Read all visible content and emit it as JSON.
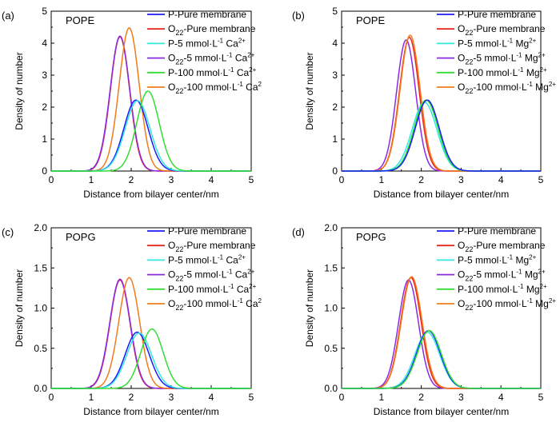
{
  "colors": {
    "p_pure": "#1a1aff",
    "o_pure": "#e8251f",
    "p_5": "#33e8e0",
    "o_5": "#8a2be2",
    "p_100": "#33dd33",
    "o_100": "#f07b1a"
  },
  "chart_data": [
    {
      "type": "line",
      "panel_label": "(a)",
      "title": "POPE",
      "xlabel": "Distance from bilayer center/nm",
      "ylabel": "Density of number",
      "xlim": [
        0,
        5
      ],
      "ylim": [
        0,
        5
      ],
      "xticks": [
        "0",
        "1",
        "2",
        "3",
        "4",
        "5"
      ],
      "yticks": [
        "0",
        "1",
        "2",
        "3",
        "4",
        "5"
      ],
      "legend_position": "top-right",
      "legend": [
        {
          "key": "p_pure",
          "prefix": "P-Pure membrane",
          "sub": "",
          "mid": "",
          "sup": "",
          "tail": "",
          "sup2": ""
        },
        {
          "key": "o_pure",
          "prefix": "O",
          "sub": "22",
          "mid": "-Pure membrane",
          "sup": "",
          "tail": "",
          "sup2": ""
        },
        {
          "key": "p_5",
          "prefix": "P-5 mmol·L",
          "sub": "",
          "mid": "",
          "sup": "-1",
          "tail": " Ca",
          "sup2": "2+"
        },
        {
          "key": "o_5",
          "prefix": "O",
          "sub": "22",
          "mid": "-5 mmol·L",
          "sup": "-1",
          "tail": " Ca",
          "sup2": "2+"
        },
        {
          "key": "p_100",
          "prefix": "P-100 mmol·L",
          "sub": "",
          "mid": "",
          "sup": "-1",
          "tail": " Ca",
          "sup2": "2+"
        },
        {
          "key": "o_100",
          "prefix": "O",
          "sub": "22",
          "mid": "-100 mmol·L",
          "sup": "-1",
          "tail": " Ca",
          "sup2": "2"
        }
      ],
      "series": [
        {
          "key": "o_pure",
          "peak": 1.72,
          "height": 4.2,
          "sigma": 0.24
        },
        {
          "key": "o_5",
          "peak": 1.72,
          "height": 4.22,
          "sigma": 0.245
        },
        {
          "key": "o_100",
          "peak": 1.95,
          "height": 4.48,
          "sigma": 0.25
        },
        {
          "key": "p_pure",
          "peak": 2.12,
          "height": 2.22,
          "sigma": 0.3
        },
        {
          "key": "p_5",
          "peak": 2.16,
          "height": 2.2,
          "sigma": 0.31
        },
        {
          "key": "p_100",
          "peak": 2.42,
          "height": 2.5,
          "sigma": 0.28
        }
      ]
    },
    {
      "type": "line",
      "panel_label": "(b)",
      "title": "POPE",
      "xlabel": "Distance from bilayer center/nm",
      "ylabel": "Density of number",
      "xlim": [
        0,
        5
      ],
      "ylim": [
        0,
        5
      ],
      "xticks": [
        "0",
        "1",
        "2",
        "3",
        "4",
        "5"
      ],
      "yticks": [
        "0",
        "1",
        "2",
        "3",
        "4",
        "5"
      ],
      "legend_position": "top-right",
      "legend": [
        {
          "key": "p_pure",
          "prefix": "P-Pure membrane",
          "sub": "",
          "mid": "",
          "sup": "",
          "tail": "",
          "sup2": ""
        },
        {
          "key": "o_pure",
          "prefix": "O",
          "sub": "22",
          "mid": "-Pure membrane",
          "sup": "",
          "tail": "",
          "sup2": ""
        },
        {
          "key": "p_5",
          "prefix": "P-5 mmol·L",
          "sub": "",
          "mid": "",
          "sup": "-1",
          "tail": " Mg",
          "sup2": "2+"
        },
        {
          "key": "o_5",
          "prefix": "O",
          "sub": "22",
          "mid": "-5 mmol·L",
          "sup": "-1",
          "tail": " Mg",
          "sup2": "2+"
        },
        {
          "key": "p_100",
          "prefix": "P-100 mmol·L",
          "sub": "",
          "mid": "",
          "sup": "-1",
          "tail": " Mg",
          "sup2": "2+"
        },
        {
          "key": "o_100",
          "prefix": "O",
          "sub": "22",
          "mid": "-100 mmol·L",
          "sup": "-1",
          "tail": " Mg",
          "sup2": "2+"
        }
      ],
      "series": [
        {
          "key": "o_5",
          "peak": 1.62,
          "height": 4.1,
          "sigma": 0.24
        },
        {
          "key": "o_pure",
          "peak": 1.7,
          "height": 4.18,
          "sigma": 0.245
        },
        {
          "key": "o_100",
          "peak": 1.72,
          "height": 4.25,
          "sigma": 0.25
        },
        {
          "key": "p_5",
          "peak": 2.08,
          "height": 2.15,
          "sigma": 0.31
        },
        {
          "key": "p_100",
          "peak": 2.12,
          "height": 2.22,
          "sigma": 0.3
        },
        {
          "key": "p_pure",
          "peak": 2.15,
          "height": 2.22,
          "sigma": 0.3
        }
      ]
    },
    {
      "type": "line",
      "panel_label": "(c)",
      "title": "POPG",
      "xlabel": "Distance from bilayer center/nm",
      "ylabel": "Density of number",
      "xlim": [
        0,
        5
      ],
      "ylim": [
        0,
        2.0
      ],
      "xticks": [
        "0",
        "1",
        "2",
        "3",
        "4",
        "5"
      ],
      "yticks": [
        "0.0",
        "0.5",
        "1.0",
        "1.5",
        "2.0"
      ],
      "legend_position": "top-right",
      "legend": [
        {
          "key": "p_pure",
          "prefix": "P-Pure membrane",
          "sub": "",
          "mid": "",
          "sup": "",
          "tail": "",
          "sup2": ""
        },
        {
          "key": "o_pure",
          "prefix": "O",
          "sub": "22",
          "mid": "-Pure membrane",
          "sup": "",
          "tail": "",
          "sup2": ""
        },
        {
          "key": "p_5",
          "prefix": "P-5 mmol·L",
          "sub": "",
          "mid": "",
          "sup": "-1",
          "tail": " Ca",
          "sup2": "2+"
        },
        {
          "key": "o_5",
          "prefix": "O",
          "sub": "22",
          "mid": "-5 mmol·L",
          "sup": "-1",
          "tail": " Ca",
          "sup2": "2+"
        },
        {
          "key": "p_100",
          "prefix": "P-100 mmol·L",
          "sub": "",
          "mid": "",
          "sup": "-1",
          "tail": " Ca",
          "sup2": "2+"
        },
        {
          "key": "o_100",
          "prefix": "O",
          "sub": "22",
          "mid": "-100 mmol·L",
          "sup": "-1",
          "tail": " Ca",
          "sup2": "2"
        }
      ],
      "series": [
        {
          "key": "o_pure",
          "peak": 1.72,
          "height": 1.35,
          "sigma": 0.25
        },
        {
          "key": "o_5",
          "peak": 1.72,
          "height": 1.36,
          "sigma": 0.255
        },
        {
          "key": "o_100",
          "peak": 1.95,
          "height": 1.38,
          "sigma": 0.26
        },
        {
          "key": "p_pure",
          "peak": 2.15,
          "height": 0.7,
          "sigma": 0.3
        },
        {
          "key": "p_5",
          "peak": 2.2,
          "height": 0.69,
          "sigma": 0.31
        },
        {
          "key": "p_100",
          "peak": 2.52,
          "height": 0.74,
          "sigma": 0.28
        }
      ]
    },
    {
      "type": "line",
      "panel_label": "(d)",
      "title": "POPG",
      "xlabel": "Distance from bilayer center/nm",
      "ylabel": "Density of number",
      "xlim": [
        0,
        5
      ],
      "ylim": [
        0,
        2.0
      ],
      "xticks": [
        "0",
        "1",
        "2",
        "3",
        "4",
        "5"
      ],
      "yticks": [
        "0.0",
        "0.5",
        "1.0",
        "1.5",
        "2.0"
      ],
      "legend_position": "top-right",
      "legend": [
        {
          "key": "p_pure",
          "prefix": "P-Pure membrane",
          "sub": "",
          "mid": "",
          "sup": "",
          "tail": "",
          "sup2": ""
        },
        {
          "key": "o_pure",
          "prefix": "O",
          "sub": "22",
          "mid": "-Pure membrane",
          "sup": "",
          "tail": "",
          "sup2": ""
        },
        {
          "key": "p_5",
          "prefix": "P-5 mmol·L",
          "sub": "",
          "mid": "",
          "sup": "-1",
          "tail": " Mg",
          "sup2": "2+"
        },
        {
          "key": "o_5",
          "prefix": "O",
          "sub": "22",
          "mid": "-5 mmol·L",
          "sup": "-1",
          "tail": " Mg",
          "sup2": "2+"
        },
        {
          "key": "p_100",
          "prefix": "P-100 mmol·L",
          "sub": "",
          "mid": "",
          "sup": "-1",
          "tail": " Mg",
          "sup2": "2+"
        },
        {
          "key": "o_100",
          "prefix": "O",
          "sub": "22",
          "mid": "-100 mmol·L",
          "sup": "-1",
          "tail": " Mg",
          "sup2": "2+"
        }
      ],
      "series": [
        {
          "key": "o_5",
          "peak": 1.68,
          "height": 1.35,
          "sigma": 0.25
        },
        {
          "key": "o_pure",
          "peak": 1.74,
          "height": 1.38,
          "sigma": 0.255
        },
        {
          "key": "o_100",
          "peak": 1.76,
          "height": 1.39,
          "sigma": 0.26
        },
        {
          "key": "p_5",
          "peak": 2.15,
          "height": 0.7,
          "sigma": 0.31
        },
        {
          "key": "p_pure",
          "peak": 2.18,
          "height": 0.72,
          "sigma": 0.3
        },
        {
          "key": "p_100",
          "peak": 2.2,
          "height": 0.72,
          "sigma": 0.3
        }
      ]
    }
  ]
}
